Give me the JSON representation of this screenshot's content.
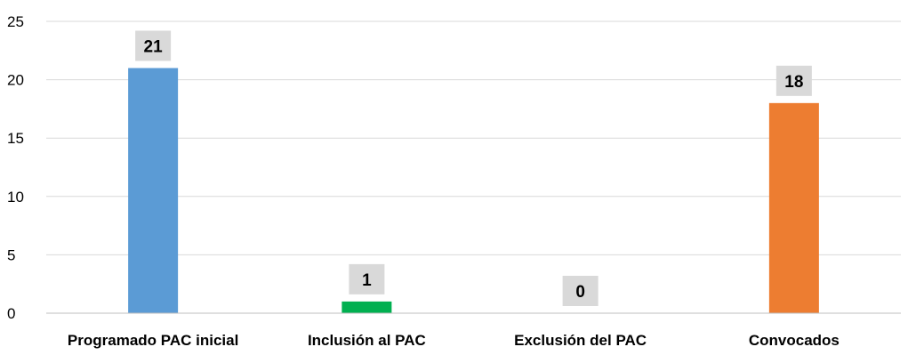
{
  "chart_data": {
    "type": "bar",
    "title": "",
    "xlabel": "",
    "ylabel": "",
    "categories": [
      "Programado PAC inicial",
      "Inclusión al PAC",
      "Exclusión del PAC",
      "Convocados"
    ],
    "values": [
      21,
      1,
      0,
      18
    ],
    "data_labels": [
      "21",
      "1",
      "0",
      "18"
    ],
    "bar_colors": [
      "#5b9bd5",
      "#00b050",
      "#a5a5a5",
      "#ed7d31"
    ],
    "data_label_background": "#d9d9d9",
    "ylim": [
      0,
      25
    ],
    "yticks": [
      0,
      5,
      10,
      15,
      20,
      25
    ],
    "grid": true,
    "legend": "none"
  }
}
